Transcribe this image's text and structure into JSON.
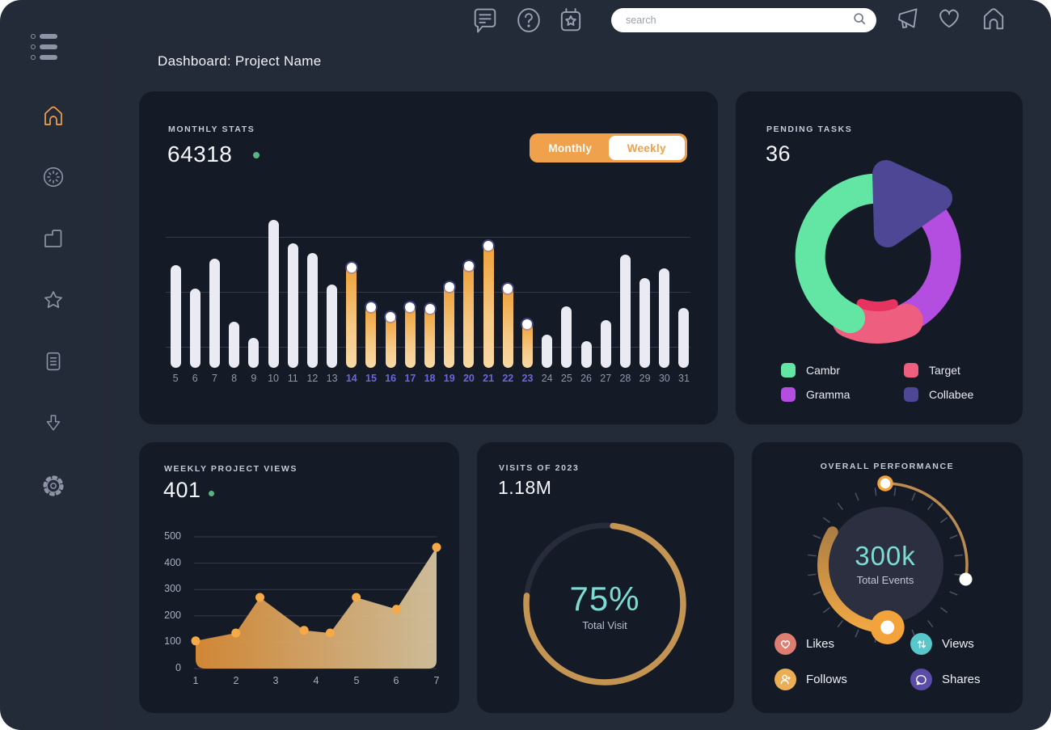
{
  "page": {
    "title": "Dashboard: Project Name"
  },
  "topbar": {
    "search_placeholder": "search",
    "icons": [
      "chat-icon",
      "help-icon",
      "calendar-star-icon",
      "megaphone-icon",
      "heart-icon",
      "home-icon"
    ]
  },
  "sidebar": {
    "items": [
      "home",
      "timer",
      "bag",
      "star",
      "notes",
      "download",
      "settings"
    ],
    "active": "home",
    "accent": "#f0a14d"
  },
  "monthly": {
    "label": "MONTHLY STATS",
    "value": "64318",
    "toggle_monthly": "Monthly",
    "toggle_weekly": "Weekly",
    "toggle_active": "Monthly"
  },
  "pending": {
    "label": "PENDING TASKS",
    "value": "36",
    "legend": [
      {
        "name": "Cambr",
        "color": "#63e6a4"
      },
      {
        "name": "Target",
        "color": "#ee5e7e"
      },
      {
        "name": "Gramma",
        "color": "#b44ee0"
      },
      {
        "name": "Collabee",
        "color": "#4d4796"
      }
    ]
  },
  "weekly": {
    "label": "WEEKLY PROJECT VIEWS",
    "value": "401"
  },
  "visits": {
    "label": "VISITS OF 2023",
    "value": "1.18M",
    "percent": "75%",
    "caption": "Total Visit"
  },
  "performance": {
    "label": "OVERALL PERFORMANCE",
    "value": "300k",
    "caption": "Total Events",
    "legend": [
      {
        "name": "Likes",
        "color": "#dd7e70",
        "icon": "heart-icon"
      },
      {
        "name": "Views",
        "color": "#58c7cb",
        "icon": "arrows-up-down-icon"
      },
      {
        "name": "Follows",
        "color": "#ebae55",
        "icon": "add-user-icon"
      },
      {
        "name": "Shares",
        "color": "#5a4ca8",
        "icon": "chat-bubble-icon"
      }
    ]
  },
  "chart_data": [
    {
      "type": "bar",
      "title": "Monthly Stats",
      "categories": [
        5,
        6,
        7,
        8,
        9,
        10,
        11,
        12,
        13,
        14,
        15,
        16,
        17,
        18,
        19,
        20,
        21,
        22,
        23,
        24,
        25,
        26,
        27,
        28,
        29,
        30,
        31
      ],
      "values": [
        65,
        50,
        69,
        29,
        19,
        94,
        79,
        73,
        53,
        64,
        39,
        33,
        39,
        38,
        52,
        65,
        78,
        51,
        28,
        21,
        39,
        17,
        30,
        72,
        57,
        63,
        38
      ],
      "unit": "percent-of-max",
      "highlight_days": [
        14,
        23
      ],
      "bar_color": "#eaeaf2",
      "highlight_color": "#f0a137",
      "label_color": "#9297ab",
      "highlight_label_color": "#6b66dd",
      "gridlines": 3
    },
    {
      "type": "pie",
      "title": "Pending Tasks",
      "segments": [
        {
          "name": "Collabee",
          "value": 12,
          "color": "#4d4796"
        },
        {
          "name": "Gramma",
          "value": 32,
          "color": "#b44ee0"
        },
        {
          "name": "Target",
          "value": 13,
          "color": "#ee5e7e"
        },
        {
          "name": "Cambr",
          "value": 43,
          "color": "#63e6a4"
        }
      ],
      "accent_inner_arc_color": "#e73360",
      "total": "36"
    },
    {
      "type": "area",
      "title": "Weekly Project Views",
      "x": [
        1,
        2,
        2.6,
        3.7,
        4.35,
        5,
        6,
        7
      ],
      "y": [
        105,
        135,
        270,
        145,
        135,
        270,
        225,
        460
      ],
      "xticks": [
        1,
        2,
        3,
        4,
        5,
        6,
        7
      ],
      "yticks": [
        0,
        100,
        200,
        300,
        400,
        500
      ],
      "ylim": [
        0,
        500
      ],
      "fill_from": "#e09036",
      "fill_to": "#dcc9a2",
      "dot_color": "#f5a947",
      "grid": true
    },
    {
      "type": "progress-ring",
      "title": "Visits of 2023",
      "percent": 75,
      "label": "75%",
      "caption": "Total Visit",
      "color": "#c49552",
      "track_color": "#272b3a"
    },
    {
      "type": "gauge",
      "title": "Overall Performance",
      "value": "300k",
      "caption": "Total Events",
      "arc_color": "#c78e45",
      "knob_color": "#f2a33c"
    }
  ]
}
